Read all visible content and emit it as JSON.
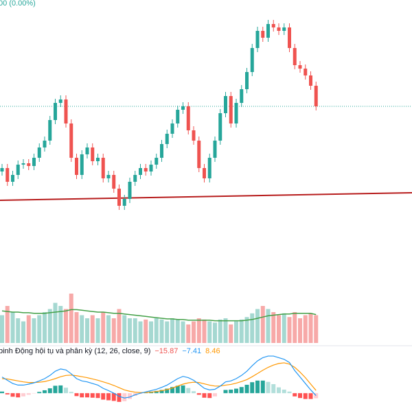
{
  "chart_data": [
    {
      "type": "candlestick",
      "title": "00 (0.00%)",
      "open": [
        70,
        75,
        55,
        65,
        80,
        82,
        78,
        90,
        105,
        115,
        145,
        170,
        175,
        140,
        90,
        65,
        95,
        105,
        85,
        90,
        60,
        65,
        45,
        20,
        30,
        55,
        65,
        75,
        70,
        80,
        90,
        110,
        125,
        140,
        160,
        165,
        130,
        115,
        75,
        60,
        90,
        115,
        155,
        180,
        140,
        170,
        190,
        215,
        250,
        275,
        265,
        285,
        280,
        275,
        280,
        250,
        225,
        220,
        210,
        195
      ],
      "high": [
        81,
        81,
        71,
        86,
        88,
        88,
        96,
        111,
        121,
        151,
        176,
        181,
        181,
        146,
        96,
        101,
        111,
        111,
        96,
        96,
        71,
        71,
        51,
        36,
        61,
        71,
        81,
        81,
        86,
        96,
        116,
        131,
        146,
        166,
        171,
        171,
        136,
        121,
        81,
        96,
        121,
        161,
        186,
        186,
        176,
        196,
        221,
        256,
        281,
        281,
        291,
        291,
        286,
        286,
        286,
        256,
        231,
        226,
        216,
        201
      ],
      "low": [
        64,
        49,
        49,
        59,
        74,
        72,
        72,
        84,
        99,
        109,
        139,
        164,
        134,
        84,
        59,
        59,
        89,
        79,
        79,
        54,
        54,
        39,
        14,
        14,
        24,
        49,
        59,
        64,
        64,
        74,
        84,
        104,
        119,
        134,
        154,
        124,
        109,
        69,
        54,
        54,
        84,
        109,
        149,
        134,
        134,
        164,
        184,
        209,
        244,
        259,
        259,
        274,
        269,
        269,
        244,
        219,
        214,
        204,
        189,
        159
      ],
      "close": [
        75,
        55,
        65,
        80,
        82,
        78,
        90,
        105,
        115,
        145,
        170,
        175,
        140,
        90,
        65,
        95,
        105,
        85,
        90,
        60,
        65,
        45,
        20,
        30,
        55,
        65,
        75,
        70,
        80,
        90,
        110,
        125,
        140,
        160,
        165,
        130,
        115,
        75,
        60,
        90,
        115,
        155,
        180,
        140,
        170,
        190,
        215,
        250,
        275,
        265,
        285,
        280,
        275,
        280,
        250,
        225,
        220,
        210,
        195,
        165
      ],
      "up_color": "#26a69a",
      "down_color": "#ef5350",
      "ylim": [
        0,
        320
      ],
      "trendline": {
        "values": [
          28,
          39
        ],
        "color": "#b71c1c"
      },
      "last_price_color": "#26a69a"
    },
    {
      "type": "volume",
      "values": [
        45,
        60,
        50,
        40,
        35,
        45,
        40,
        45,
        50,
        55,
        65,
        60,
        55,
        80,
        50,
        45,
        40,
        45,
        40,
        50,
        45,
        40,
        55,
        45,
        40,
        40,
        35,
        38,
        35,
        40,
        38,
        35,
        40,
        38,
        35,
        30,
        35,
        40,
        38,
        35,
        33,
        38,
        40,
        30,
        35,
        38,
        42,
        48,
        55,
        60,
        55,
        50,
        45,
        48,
        42,
        50,
        40,
        45,
        48,
        45
      ],
      "ma": [
        52,
        51,
        50,
        50,
        49,
        49,
        48,
        48,
        48,
        49,
        50,
        51,
        52,
        54,
        54,
        53,
        52,
        51,
        50,
        50,
        49,
        48,
        48,
        47,
        46,
        45,
        44,
        43,
        42,
        41,
        40,
        39,
        39,
        38,
        38,
        37,
        37,
        37,
        37,
        37,
        36,
        36,
        36,
        36,
        36,
        36,
        37,
        38,
        40,
        42,
        44,
        45,
        46,
        47,
        47,
        48,
        48,
        48,
        48,
        46
      ],
      "up_color": "#a5d8d1",
      "down_color": "#f7a9a8",
      "ma_color": "#43a047",
      "ylim": [
        0,
        100
      ]
    },
    {
      "type": "macd",
      "title": "binh Động hội tụ và phân kỳ (12, 26, close, 9)",
      "macd": [
        50,
        40,
        30,
        25,
        25,
        28,
        32,
        38,
        45,
        55,
        68,
        75,
        72,
        60,
        45,
        38,
        35,
        30,
        25,
        15,
        8,
        0,
        -10,
        -15,
        -12,
        -5,
        0,
        4,
        8,
        12,
        18,
        25,
        35,
        45,
        52,
        48,
        40,
        28,
        15,
        10,
        12,
        22,
        35,
        38,
        45,
        55,
        68,
        85,
        100,
        110,
        115,
        115,
        110,
        105,
        95,
        70,
        50,
        30,
        10,
        -7.41
      ],
      "signal": [
        45,
        44,
        41,
        38,
        35,
        33,
        33,
        34,
        36,
        40,
        45,
        51,
        55,
        56,
        54,
        51,
        48,
        44,
        40,
        35,
        30,
        24,
        17,
        10,
        6,
        3,
        2,
        2,
        3,
        5,
        8,
        11,
        16,
        22,
        28,
        32,
        34,
        33,
        29,
        25,
        22,
        22,
        25,
        27,
        31,
        36,
        42,
        51,
        61,
        71,
        80,
        87,
        92,
        94,
        90,
        80,
        65,
        48,
        28,
        8.46
      ],
      "histogram": [
        5,
        -4,
        -11,
        -13,
        -10,
        -5,
        -1,
        4,
        9,
        15,
        23,
        24,
        17,
        4,
        -9,
        -13,
        -13,
        -14,
        -15,
        -20,
        -22,
        -24,
        -27,
        -25,
        -18,
        -8,
        -2,
        2,
        5,
        7,
        10,
        14,
        19,
        23,
        24,
        16,
        6,
        -5,
        -14,
        -15,
        -10,
        0,
        10,
        11,
        14,
        19,
        26,
        34,
        39,
        39,
        35,
        28,
        18,
        11,
        5,
        -10,
        -15,
        -18,
        -18,
        -15.87
      ],
      "last_labels": [
        "−15.87",
        "−7.41",
        "8.46"
      ],
      "macd_color": "#2196f3",
      "signal_color": "#ff9800",
      "label_color": "#ef5350",
      "hist_colors": [
        "#26a69a",
        "#b2dfdb",
        "#ff5252",
        "#ffcdd2"
      ],
      "ylim": [
        -40,
        130
      ]
    }
  ]
}
